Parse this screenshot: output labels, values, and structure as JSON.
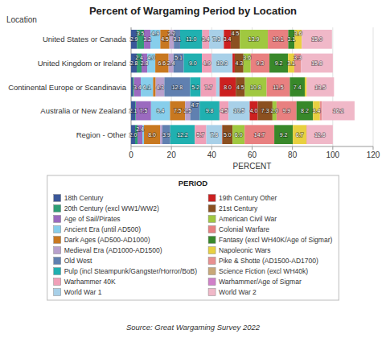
{
  "chart_data": {
    "type": "bar",
    "orientation": "horizontal",
    "stacked": true,
    "title": "Percent of Wargaming Period by Location",
    "x_label": "PERCENT",
    "y_label": "Location",
    "legend_title": "PERIOD",
    "source": "Source: Great Wargaming Survey 2022",
    "legend": "below",
    "grid": true,
    "data_labels": true,
    "xlim": [
      0,
      120
    ],
    "xticks": [
      0,
      20,
      40,
      60,
      80,
      100,
      120
    ],
    "categories": [
      "United States or Canada",
      "United Kingdom or Ireland",
      "Continental Europe or Scandinavia",
      "Australia or New Zealand",
      "Region - Other"
    ],
    "series": [
      {
        "name": "18th Century",
        "color": "#3a5799",
        "values": [
          2.9,
          2.8,
          0.8,
          2.1,
          2.0
        ],
        "value_labels": [
          "2.9",
          "2.8",
          null,
          "2.1",
          "2.0"
        ]
      },
      {
        "name": "20th Century (excl WW1/WW2)",
        "color": "#2e9e74",
        "values": [
          3.5,
          2.4,
          0.6,
          0.3,
          1.2
        ],
        "value_labels": [
          "3.5",
          "2.4",
          null,
          null,
          null
        ]
      },
      {
        "name": "Age of Sail/Pirates",
        "color": "#9b6abf",
        "values": [
          3.2,
          2.8,
          3.4,
          7.5,
          2.4
        ],
        "value_labels": [
          "3.2",
          "2.8",
          "3.4",
          "7.5",
          "2.4"
        ]
      },
      {
        "name": "Ancient Era (until AD500)",
        "color": "#87ceeb",
        "values": [
          4.9,
          4.0,
          6.1,
          9.4,
          0.8
        ],
        "value_labels": [
          "4.9",
          "4.0",
          "6.1",
          "9.4",
          null
        ]
      },
      {
        "name": "Dark Ages (AD500-AD1000)",
        "color": "#c87820",
        "values": [
          4.5,
          6.6,
          1.3,
          7.5,
          8.0
        ],
        "value_labels": [
          "4.5",
          "6.6",
          null,
          "7.5",
          "8.0"
        ]
      },
      {
        "name": "Medieval Era (AD1000-AD1500)",
        "color": "#b8a0cc",
        "values": [
          2.2,
          2.4,
          4.3,
          2.5,
          1.1
        ],
        "value_labels": [
          "2.2",
          "2.4",
          "4.3",
          "2.5",
          null
        ]
      },
      {
        "name": "Old West",
        "color": "#6080b0",
        "values": [
          3.1,
          5.1,
          12.8,
          4.7,
          3.9
        ],
        "value_labels": [
          "3.1",
          "5.1",
          "12.8",
          "4.7",
          "3.9"
        ]
      },
      {
        "name": "Pulp (incl Steampunk/Gangster/Horror/BoB)",
        "color": "#20b0b0",
        "values": [
          11.0,
          9.0,
          5.2,
          9.8,
          12.2
        ],
        "value_labels": [
          "11.0",
          "9.0",
          "5.2",
          "9.8",
          "12.2"
        ]
      },
      {
        "name": "Warhammer 40K",
        "color": "#f0a0b8",
        "values": [
          3.4,
          4.9,
          7.7,
          4.5,
          5.7
        ],
        "value_labels": [
          "3.4",
          "4.9",
          "7.7",
          "4.5",
          "5.7"
        ]
      },
      {
        "name": "World War 1",
        "color": "#a8d0e8",
        "values": [
          7.3,
          10.3,
          1.7,
          10.5,
          7.8
        ],
        "value_labels": [
          "7.3",
          "10.3",
          null,
          "10.5",
          "7.8"
        ]
      },
      {
        "name": "19th Century Other",
        "color": "#cc2020",
        "values": [
          3.4,
          1.1,
          8.0,
          4.0,
          0.2
        ],
        "value_labels": [
          "3.4",
          null,
          "8.0",
          "4.0",
          null
        ]
      },
      {
        "name": "21st Century",
        "color": "#8b5020",
        "values": [
          4.5,
          4.3,
          4.5,
          7.3,
          5.0
        ],
        "value_labels": [
          "4.5",
          "4.3",
          "4.5",
          "7.3",
          "5.0"
        ]
      },
      {
        "name": "American Civil War",
        "color": "#a0c840",
        "values": [
          13.9,
          3.6,
          10.8,
          2.0,
          6.0
        ],
        "value_labels": [
          "13.9",
          "3.6",
          "10.8",
          "2.0",
          "6.0"
        ]
      },
      {
        "name": "Colonial Warfare",
        "color": "#e88080",
        "values": [
          10.1,
          9.3,
          11.5,
          9.9,
          14.7
        ],
        "value_labels": [
          "10.1",
          "9.3",
          "11.5",
          "9.9",
          "14.7"
        ]
      },
      {
        "name": "Fantasy (excl WH40K/Age of Sigmar)",
        "color": "#38882a",
        "values": [
          3.1,
          9.2,
          7.4,
          8.2,
          9.2
        ],
        "value_labels": [
          "3.1",
          "9.2",
          "7.4",
          "8.2",
          "9.2"
        ]
      },
      {
        "name": "Napoleonic Wars",
        "color": "#e8d040",
        "values": [
          3.6,
          3.1,
          1.0,
          3.4,
          6.7
        ],
        "value_labels": [
          "3.6",
          "3.1",
          null,
          "3.4",
          "6.7"
        ]
      },
      {
        "name": "Pike & Shotte (AD1500-AD1700)",
        "color": "#e89090",
        "values": [
          0.0,
          3.3,
          0.0,
          1.0,
          0.3
        ],
        "value_labels": [
          null,
          "3.3",
          null,
          null,
          null
        ]
      },
      {
        "name": "Science Fiction (excl WH40k)",
        "color": "#c8a878",
        "values": [
          0.0,
          0.0,
          0.0,
          0.0,
          0.0
        ],
        "value_labels": [
          null,
          null,
          null,
          null,
          null
        ]
      },
      {
        "name": "Warhammer/Age of Sigmar",
        "color": "#d080c8",
        "values": [
          0.0,
          0.0,
          0.0,
          0.0,
          0.0
        ],
        "value_labels": [
          null,
          null,
          null,
          null,
          null
        ]
      },
      {
        "name": "World War 2",
        "color": "#f0b8c8",
        "values": [
          15.0,
          15.8,
          13.5,
          16.2,
          12.8
        ],
        "value_labels": [
          "15.0",
          "15.8",
          "13.5",
          "16.2",
          "12.8"
        ]
      }
    ]
  }
}
